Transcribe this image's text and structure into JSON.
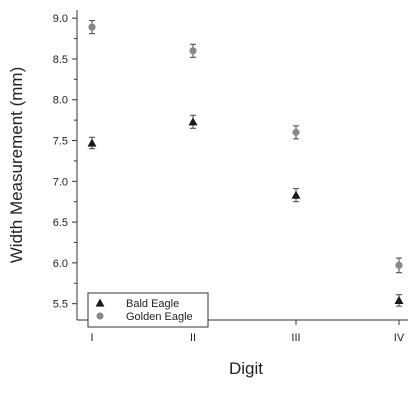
{
  "chart_data": {
    "type": "scatter",
    "title": "",
    "xlabel": "Digit",
    "ylabel": "Width Measurement (mm)",
    "categories": [
      "I",
      "II",
      "III",
      "IV"
    ],
    "ylim": [
      5.3,
      9.1
    ],
    "yticks": [
      "5.5",
      "6.0",
      "6.5",
      "7.0",
      "7.5",
      "8.0",
      "8.5",
      "9.0"
    ],
    "grid": false,
    "legend_position": "bottom-left",
    "error_bars": true,
    "series": [
      {
        "name": "Bald Eagle",
        "marker": "triangle",
        "color": "#1a1a1a",
        "values": [
          7.47,
          7.73,
          6.83,
          5.54
        ],
        "errors": [
          0.07,
          0.08,
          0.08,
          0.07
        ]
      },
      {
        "name": "Golden Eagle",
        "marker": "circle",
        "color": "#888888",
        "values": [
          8.89,
          8.6,
          7.6,
          5.97
        ],
        "errors": [
          0.08,
          0.08,
          0.08,
          0.09
        ]
      }
    ]
  }
}
